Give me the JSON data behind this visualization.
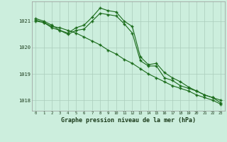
{
  "title": "Graphe pression niveau de la mer (hPa)",
  "x_labels": [
    "0",
    "1",
    "2",
    "3",
    "4",
    "5",
    "6",
    "7",
    "8",
    "9",
    "10",
    "11",
    "12",
    "13",
    "14",
    "15",
    "16",
    "17",
    "18",
    "19",
    "20",
    "21",
    "22",
    "23"
  ],
  "line1": [
    1021.0,
    1020.95,
    1020.8,
    1020.75,
    1020.65,
    1020.55,
    1020.4,
    1020.25,
    1020.1,
    1019.9,
    1019.75,
    1019.55,
    1019.4,
    1019.2,
    1019.0,
    1018.85,
    1018.7,
    1018.55,
    1018.45,
    1018.35,
    1018.2,
    1018.1,
    1018.0,
    1017.85
  ],
  "line2": [
    1021.05,
    1020.95,
    1020.75,
    1020.65,
    1020.55,
    1020.75,
    1020.85,
    1021.15,
    1021.5,
    1021.4,
    1021.35,
    1021.0,
    1020.8,
    1019.65,
    1019.35,
    1019.4,
    1019.05,
    1018.85,
    1018.7,
    1018.5,
    1018.35,
    1018.2,
    1018.1,
    1018.0
  ],
  "line3": [
    1021.1,
    1021.0,
    1020.85,
    1020.65,
    1020.5,
    1020.65,
    1020.7,
    1021.0,
    1021.3,
    1021.25,
    1021.2,
    1020.9,
    1020.55,
    1019.5,
    1019.3,
    1019.3,
    1018.85,
    1018.75,
    1018.55,
    1018.45,
    1018.35,
    1018.2,
    1018.1,
    1017.9
  ],
  "line_color": "#1a6b1a",
  "bg_color": "#cceedd",
  "grid_color": "#aaccbb",
  "ylim_min": 1017.6,
  "ylim_max": 1021.75,
  "yticks": [
    1018,
    1019,
    1020,
    1021
  ],
  "title_fontsize": 7
}
